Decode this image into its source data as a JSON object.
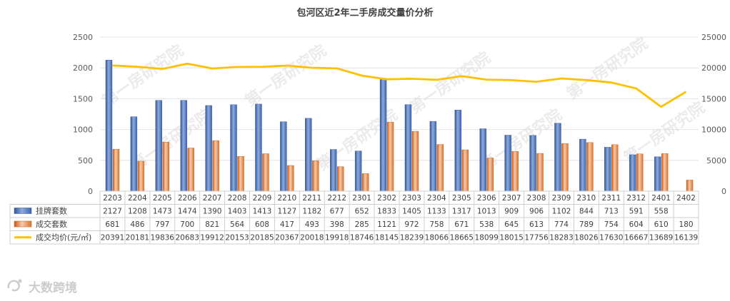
{
  "chart_data": {
    "type": "bar+line",
    "title": "包河区近2年二手房成交量价分析",
    "categories": [
      "2203",
      "2204",
      "2205",
      "2206",
      "2207",
      "2208",
      "2209",
      "2210",
      "2211",
      "2212",
      "2301",
      "2302",
      "2303",
      "2304",
      "2305",
      "2306",
      "2307",
      "2308",
      "2309",
      "2310",
      "2311",
      "2312",
      "2401",
      "2402"
    ],
    "series": [
      {
        "name": "挂牌套数",
        "type": "bar",
        "axis": "left",
        "color": "#4472c4",
        "values": [
          2127,
          1208,
          1473,
          1474,
          1390,
          1403,
          1413,
          1127,
          1182,
          677,
          652,
          1833,
          1405,
          1133,
          1317,
          1013,
          909,
          906,
          1102,
          844,
          713,
          591,
          558,
          0
        ]
      },
      {
        "name": "成交套数",
        "type": "bar",
        "axis": "left",
        "color": "#ed7d31",
        "values": [
          681,
          486,
          797,
          700,
          821,
          564,
          608,
          417,
          493,
          398,
          285,
          1121,
          972,
          758,
          671,
          538,
          645,
          613,
          774,
          789,
          754,
          604,
          610,
          180
        ]
      },
      {
        "name": "成交均价(元/㎡)",
        "type": "line",
        "axis": "right",
        "color": "#ffc000",
        "values": [
          20391,
          20181,
          19836,
          20683,
          19912,
          20153,
          20185,
          20367,
          20018,
          19918,
          18746,
          18145,
          18239,
          18066,
          18665,
          18099,
          18015,
          17756,
          18283,
          18026,
          17630,
          16667,
          13689,
          16139
        ]
      }
    ],
    "y_left": {
      "ticks": [
        "0",
        "500",
        "1000",
        "1500",
        "2000",
        "2500"
      ],
      "ylim": [
        0,
        2500
      ]
    },
    "y_right": {
      "ticks": [
        "0",
        "5000",
        "10000",
        "15000",
        "20000",
        "25000"
      ],
      "ylim": [
        0,
        25000
      ]
    },
    "grid": true,
    "legend": "data-table",
    "watermark": "第一房研究院"
  },
  "table": {
    "row_labels": [
      "挂牌套数",
      "成交套数",
      "成交均价(元/㎡)"
    ],
    "rows": [
      [
        "2127",
        "1208",
        "1473",
        "1474",
        "1390",
        "1403",
        "1413",
        "1127",
        "1182",
        "677",
        "652",
        "1833",
        "1405",
        "1133",
        "1317",
        "1013",
        "909",
        "906",
        "1102",
        "844",
        "713",
        "591",
        "558",
        ""
      ],
      [
        "681",
        "486",
        "797",
        "700",
        "821",
        "564",
        "608",
        "417",
        "493",
        "398",
        "285",
        "1121",
        "972",
        "758",
        "671",
        "538",
        "645",
        "613",
        "774",
        "789",
        "754",
        "604",
        "610",
        "180"
      ],
      [
        "20391",
        "20181",
        "19836",
        "20683",
        "19912",
        "20153",
        "20185",
        "20367",
        "20018",
        "19918",
        "18746",
        "18145",
        "18239",
        "18066",
        "18665",
        "18099",
        "18015",
        "17756",
        "18283",
        "18026",
        "17630",
        "16667",
        "13689",
        "16139"
      ]
    ]
  },
  "logo": {
    "text": "大数跨境",
    "icon": "logo-swirl-icon"
  }
}
